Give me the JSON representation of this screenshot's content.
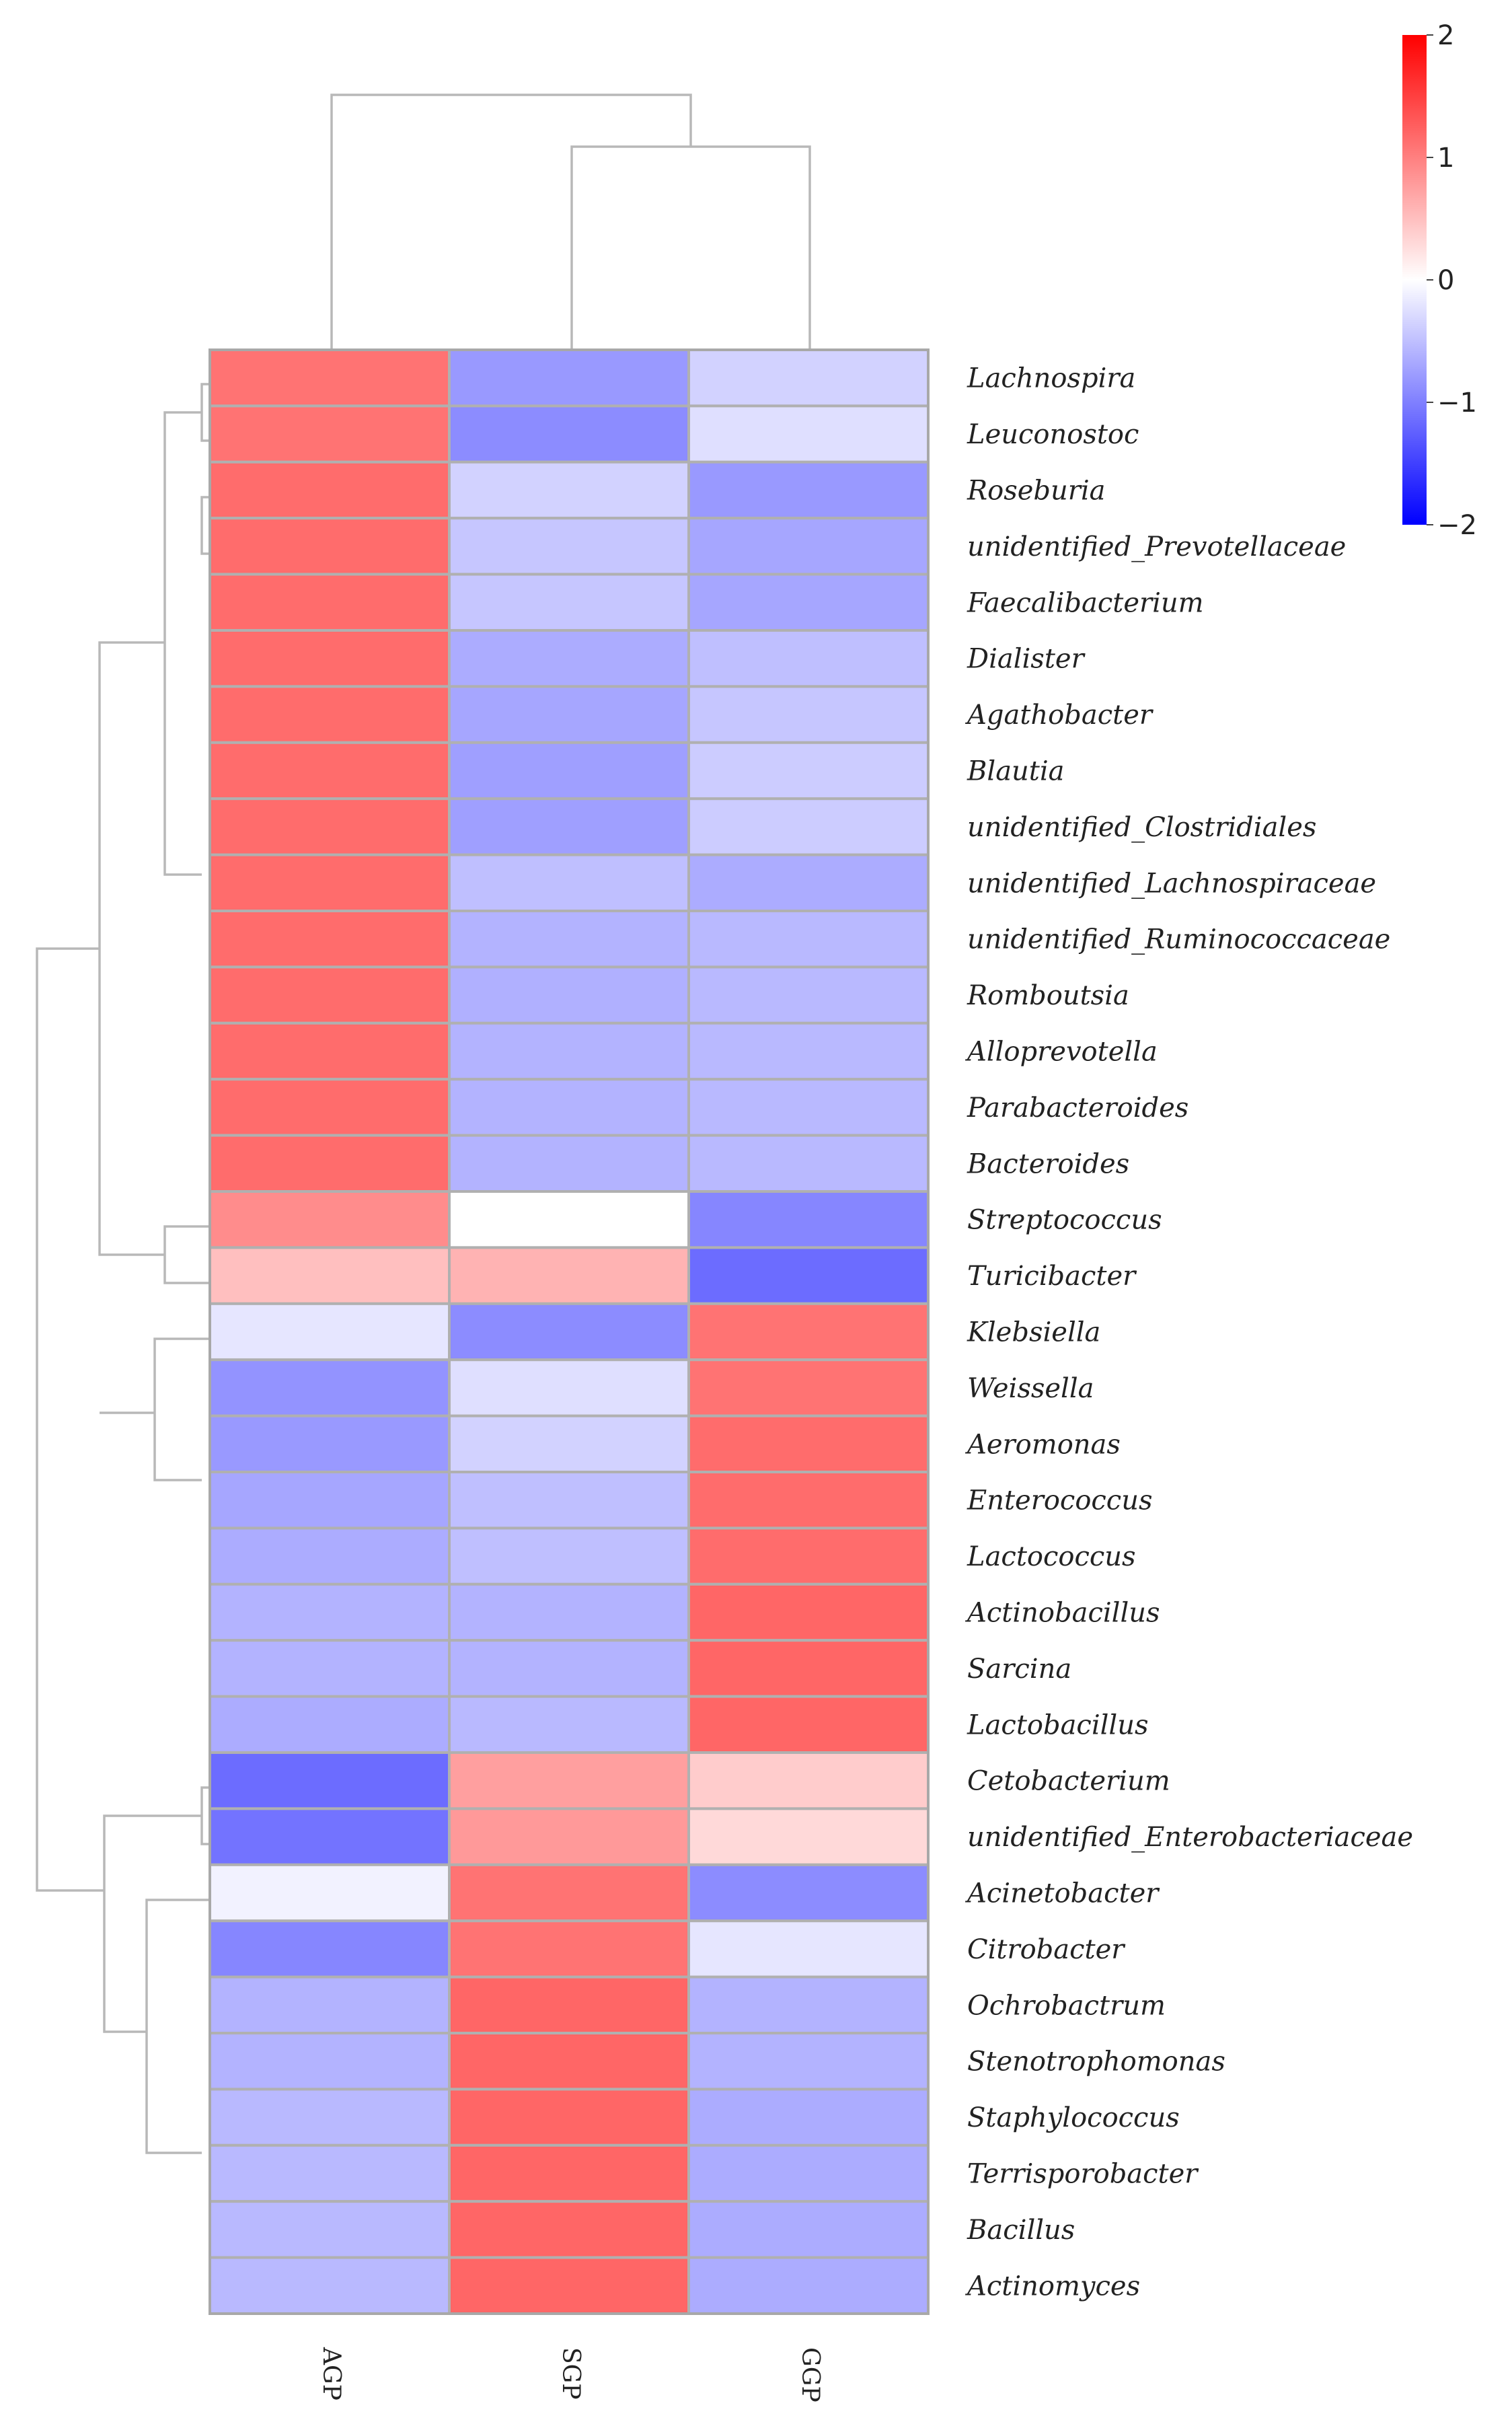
{
  "chart_data": {
    "type": "heatmap",
    "title": "",
    "columns": [
      "AGP",
      "SGP",
      "GGP"
    ],
    "rows": [
      "Lachnospira",
      "Leuconostoc",
      "Roseburia",
      "unidentified_Prevotellaceae",
      "Faecalibacterium",
      "Dialister",
      "Agathobacter",
      "Blautia",
      "unidentified_Clostridiales",
      "unidentified_Lachnospiraceae",
      "unidentified_Ruminococcaceae",
      "Romboutsia",
      "Alloprevotella",
      "Parabacteroides",
      "Bacteroides",
      "Streptococcus",
      "Turicibacter",
      "Klebsiella",
      "Weissella",
      "Aeromonas",
      "Enterococcus",
      "Lactococcus",
      "Actinobacillus",
      "Sarcina",
      "Lactobacillus",
      "Cetobacterium",
      "unidentified_Enterobacteriaceae",
      "Acinetobacter",
      "Citrobacter",
      "Ochrobactrum",
      "Stenotrophomonas",
      "Staphylococcus",
      "Terrisporobacter",
      "Bacillus",
      "Actinomyces"
    ],
    "values": [
      [
        1.1,
        -0.8,
        -0.35
      ],
      [
        1.1,
        -0.9,
        -0.25
      ],
      [
        1.15,
        -0.35,
        -0.8
      ],
      [
        1.15,
        -0.45,
        -0.7
      ],
      [
        1.15,
        -0.45,
        -0.7
      ],
      [
        1.15,
        -0.65,
        -0.5
      ],
      [
        1.15,
        -0.7,
        -0.45
      ],
      [
        1.15,
        -0.75,
        -0.4
      ],
      [
        1.15,
        -0.75,
        -0.4
      ],
      [
        1.15,
        -0.5,
        -0.65
      ],
      [
        1.15,
        -0.6,
        -0.55
      ],
      [
        1.15,
        -0.62,
        -0.55
      ],
      [
        1.15,
        -0.6,
        -0.55
      ],
      [
        1.15,
        -0.6,
        -0.55
      ],
      [
        1.15,
        -0.6,
        -0.55
      ],
      [
        0.9,
        0.0,
        -0.95
      ],
      [
        0.5,
        0.6,
        -1.15
      ],
      [
        -0.2,
        -0.9,
        1.1
      ],
      [
        -0.85,
        -0.25,
        1.1
      ],
      [
        -0.8,
        -0.35,
        1.15
      ],
      [
        -0.7,
        -0.5,
        1.15
      ],
      [
        -0.65,
        -0.5,
        1.15
      ],
      [
        -0.6,
        -0.6,
        1.2
      ],
      [
        -0.6,
        -0.6,
        1.2
      ],
      [
        -0.65,
        -0.55,
        1.2
      ],
      [
        -1.15,
        0.75,
        0.4
      ],
      [
        -1.1,
        0.8,
        0.3
      ],
      [
        -0.1,
        1.1,
        -0.9
      ],
      [
        -0.95,
        1.1,
        -0.2
      ],
      [
        -0.6,
        1.2,
        -0.6
      ],
      [
        -0.6,
        1.2,
        -0.6
      ],
      [
        -0.55,
        1.2,
        -0.65
      ],
      [
        -0.55,
        1.2,
        -0.65
      ],
      [
        -0.55,
        1.2,
        -0.65
      ],
      [
        -0.55,
        1.2,
        -0.65
      ]
    ],
    "colorbar": {
      "min": -2,
      "max": 2,
      "ticks": [
        "2",
        "1",
        "0",
        "−1",
        "−2"
      ],
      "colors": {
        "low": "#0000ff",
        "mid": "#ffffff",
        "high": "#ff0000"
      }
    },
    "legend_position": "top-right"
  }
}
